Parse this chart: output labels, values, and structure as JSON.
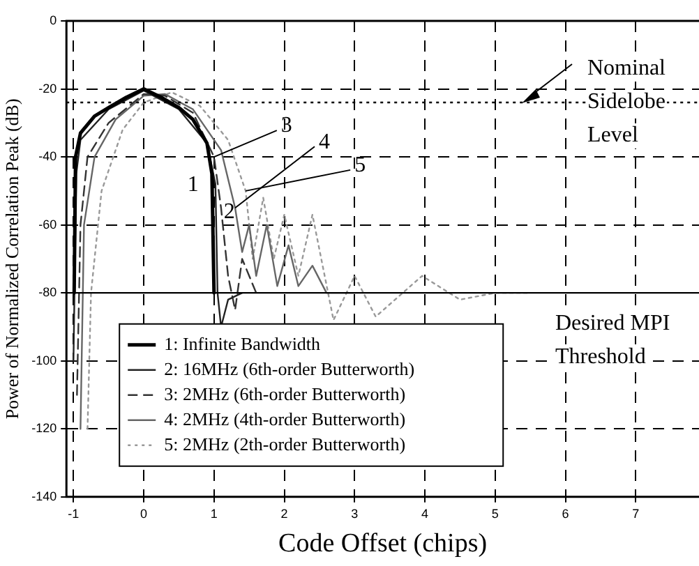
{
  "chart_data": {
    "type": "line",
    "xlabel": "Code Offset (chips)",
    "ylabel": "Power of Normalized Correlation Peak (dB)",
    "xlim": [
      -1.1,
      7.9
    ],
    "xticks": [
      -1,
      0,
      1,
      2,
      3,
      4,
      5,
      6,
      7
    ],
    "ylim": [
      -140,
      0
    ],
    "yticks": [
      0,
      -20,
      -40,
      -60,
      -80,
      -100,
      -120,
      -140
    ],
    "grid": true,
    "legend": "bottom left",
    "marker": "none",
    "series": [
      {
        "name": "1: Infinite Bandwidth",
        "color": "#000000",
        "line_style": "solid",
        "x": [
          -0.99,
          -0.97,
          -0.9,
          -0.7,
          -0.5,
          -0.25,
          0,
          0.25,
          0.5,
          0.7,
          0.9,
          0.97,
          1.0
        ],
        "values": [
          -80,
          -40,
          -33,
          -28,
          -25.5,
          -22.5,
          -20,
          -22.5,
          -25.5,
          -29,
          -36,
          -45,
          -80
        ]
      },
      {
        "name": "2: 16MHz (6th-order Butterworth)",
        "color": "#222222",
        "line_style": "solid",
        "x": [
          -1.0,
          -0.96,
          -0.9,
          -0.5,
          0,
          0.5,
          0.9,
          1.02,
          1.05,
          1.1,
          1.2,
          1.4
        ],
        "values": [
          -100,
          -45,
          -35,
          -26,
          -20.5,
          -26,
          -36,
          -48,
          -80,
          -90,
          -82,
          -80
        ]
      },
      {
        "name": "3: 2MHz (6th-order Butterworth)",
        "color": "#333333",
        "line_style": "dashed",
        "x": [
          -0.95,
          -0.9,
          -0.8,
          -0.5,
          0,
          0.3,
          0.7,
          1.0,
          1.1,
          1.2,
          1.3,
          1.4,
          1.6
        ],
        "values": [
          -110,
          -60,
          -40,
          -30,
          -21.5,
          -22,
          -27,
          -40,
          -55,
          -75,
          -85,
          -70,
          -80
        ]
      },
      {
        "name": "4: 2MHz (4th-order Butterworth)",
        "color": "#666666",
        "line_style": "solid",
        "x": [
          -0.9,
          -0.85,
          -0.7,
          -0.4,
          0,
          0.3,
          0.7,
          1.1,
          1.3,
          1.4,
          1.5,
          1.6,
          1.75,
          1.9,
          2.06,
          2.2,
          2.4,
          2.6,
          3.0
        ],
        "values": [
          -120,
          -60,
          -40,
          -29,
          -22,
          -21.5,
          -26,
          -38,
          -55,
          -68,
          -60,
          -75,
          -60,
          -78,
          -66,
          -78,
          -72,
          -80,
          -80
        ]
      },
      {
        "name": "5: 2MHz (2th-order Butterworth)",
        "color": "#999999",
        "line_style": "dotted",
        "x": [
          -0.8,
          -0.75,
          -0.6,
          -0.3,
          0,
          0.4,
          0.8,
          1.2,
          1.45,
          1.55,
          1.7,
          1.85,
          2.0,
          2.2,
          2.4,
          2.7,
          3.0,
          3.3,
          3.96,
          4.5,
          5.0,
          5.5
        ],
        "values": [
          -120,
          -80,
          -50,
          -32,
          -24,
          -21,
          -25,
          -35,
          -50,
          -70,
          -52,
          -70,
          -57,
          -75,
          -57,
          -88,
          -75,
          -87,
          -75,
          -82,
          -80,
          -80
        ]
      }
    ],
    "ref_lines": [
      {
        "axis": "y",
        "value": -24,
        "label": "Nominal Sidelobe Level",
        "line_style": "dotted"
      },
      {
        "axis": "y",
        "value": -80,
        "label": "Desired MPI Threshold",
        "line_style": "solid"
      }
    ],
    "annotations": [
      {
        "text": "1",
        "x": 0.9,
        "y": -36
      },
      {
        "text": "2",
        "x": 1.02,
        "y": -48
      },
      {
        "text": "3",
        "x": 1.0,
        "y": -40
      },
      {
        "text": "4",
        "x": 1.3,
        "y": -55
      },
      {
        "text": "5",
        "x": 1.45,
        "y": -50
      }
    ]
  }
}
